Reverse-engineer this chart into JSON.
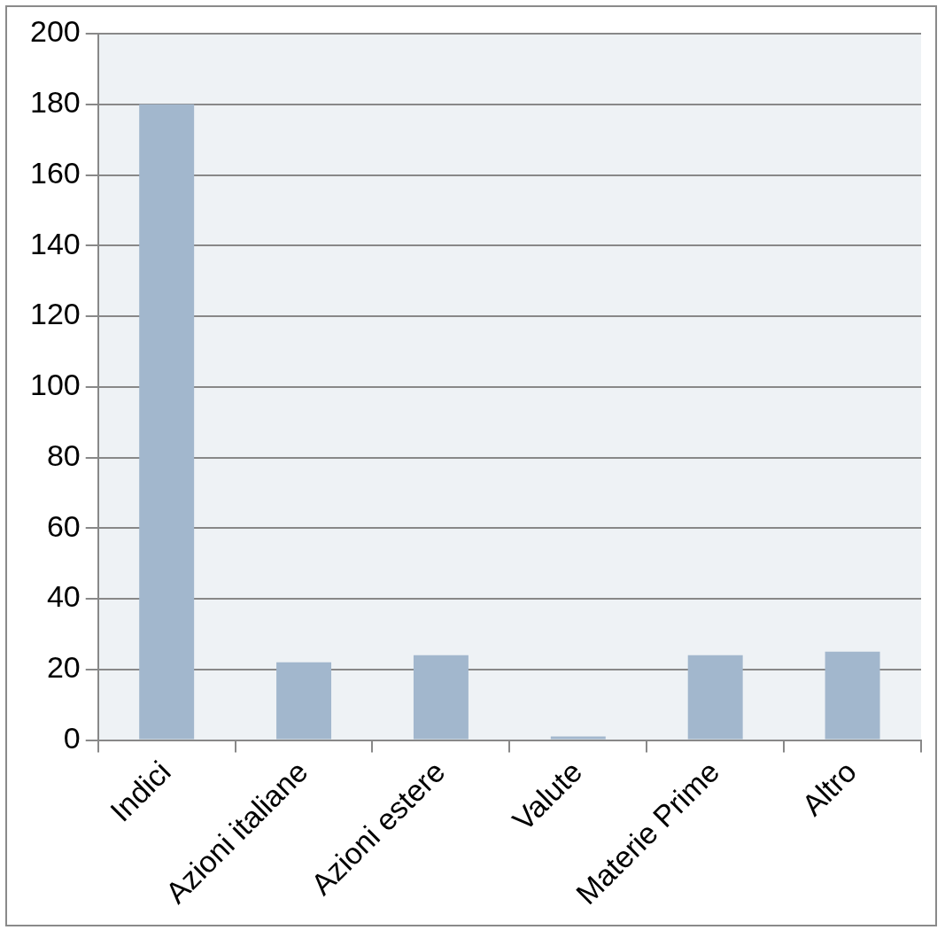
{
  "chart_data": {
    "type": "bar",
    "categories": [
      "Indici",
      "Azioni italiane",
      "Azioni estere",
      "Valute",
      "Materie Prime",
      "Altro"
    ],
    "values": [
      180,
      22,
      24,
      1,
      24,
      25
    ],
    "color": "#a2b7cd",
    "ylim": [
      0,
      200
    ],
    "yticks": [
      0,
      20,
      40,
      60,
      80,
      100,
      120,
      140,
      160,
      180,
      200
    ],
    "grid": "y",
    "legend": false
  }
}
